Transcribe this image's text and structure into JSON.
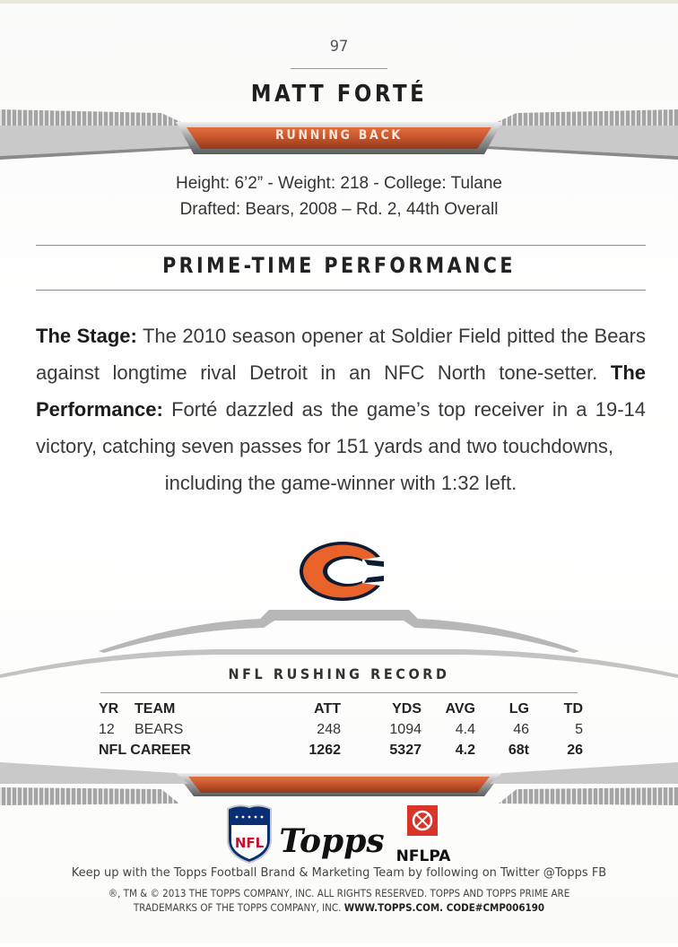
{
  "card": {
    "number": "97",
    "player_name": "MATT FORTÉ",
    "position": "RUNNING BACK"
  },
  "bio": {
    "line1": "Height: 6’2” - Weight: 218 - College: Tulane",
    "line2": "Drafted: Bears, 2008 – Rd. 2, 44th Overall"
  },
  "section": {
    "title": "PRIME-TIME PERFORMANCE"
  },
  "story": {
    "stage_label": "The Stage:",
    "stage_text": "The 2010 season opener at Soldier Field pitted the Bears against longtime rival Detroit in an NFC North tone-setter.",
    "performance_label": "The Performance:",
    "performance_text": "Forté dazzled as the game’s top receiver in a 19-14 victory, catching seven passes for 151 yards and two touchdowns,",
    "performance_last": "including the game-winner with 1:32 left."
  },
  "team_logo": {
    "icon": "bears-c-logo-icon",
    "colors": {
      "orange": "#e8622a",
      "navy": "#0b1c33"
    }
  },
  "stats": {
    "title": "NFL RUSHING RECORD",
    "headers": {
      "yr": "YR",
      "team": "TEAM",
      "att": "ATT",
      "yds": "YDS",
      "avg": "AVG",
      "lg": "LG",
      "td": "TD"
    },
    "rows": [
      {
        "yr": "12",
        "team": "BEARS",
        "att": "248",
        "yds": "1094",
        "avg": "4.4",
        "lg": "46",
        "td": "5"
      }
    ],
    "career": {
      "label": "NFL CAREER",
      "att": "1262",
      "yds": "5327",
      "avg": "4.2",
      "lg": "68t",
      "td": "26"
    }
  },
  "footer": {
    "nfl_logo": "NFL",
    "topps_logo": "Topps",
    "nflpa_logo": "NFLPA",
    "follow_text": "Keep up with the Topps Football Brand & Marketing Team by following on Twitter @Topps FB",
    "legal_line1": "®, TM & © 2013 THE TOPPS COMPANY, INC. ALL RIGHTS RESERVED. TOPPS AND TOPPS PRIME ARE",
    "legal_line2_a": "TRADEMARKS OF THE TOPPS COMPANY, INC.",
    "legal_line2_b": "WWW.TOPPS.COM. CODE#CMP006190"
  },
  "colors": {
    "accent_orange": "#c5532a",
    "bar_gray": "#9a9a9a"
  }
}
